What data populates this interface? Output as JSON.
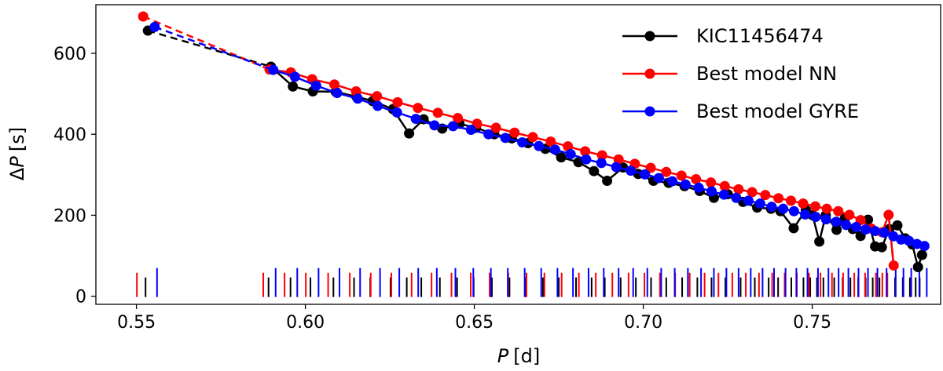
{
  "chart_data": {
    "type": "scatter",
    "xlabel_var": "P",
    "xlabel_unit": "[d]",
    "ylabel_prefix": "Δ",
    "ylabel_var": "P",
    "ylabel_unit": "[s]",
    "xlim": [
      0.538,
      0.788
    ],
    "ylim": [
      -20,
      720
    ],
    "xticks": [
      0.55,
      0.6,
      0.65,
      0.7,
      0.75
    ],
    "xtick_labels": [
      "0.55",
      "0.60",
      "0.65",
      "0.70",
      "0.75"
    ],
    "yticks": [
      0,
      200,
      400,
      600
    ],
    "ytick_labels": [
      "0",
      "200",
      "400",
      "600"
    ],
    "legend_position": "top-right",
    "series": [
      {
        "name": "KIC11456474",
        "color": "#000000",
        "x": [
          0.5534,
          0.5898,
          0.5963,
          0.6022,
          0.609,
          0.6151,
          0.6199,
          0.6259,
          0.6307,
          0.635,
          0.6405,
          0.6456,
          0.6505,
          0.6559,
          0.6611,
          0.6659,
          0.671,
          0.6757,
          0.6808,
          0.6854,
          0.6893,
          0.694,
          0.6985,
          0.703,
          0.7075,
          0.7122,
          0.7167,
          0.7209,
          0.725,
          0.7295,
          0.7337,
          0.7378,
          0.7406,
          0.7445,
          0.7481,
          0.7501,
          0.7521,
          0.754,
          0.7572,
          0.7597,
          0.762,
          0.7643,
          0.7665,
          0.7686,
          0.7706,
          0.7728,
          0.7752,
          0.7775,
          0.7796,
          0.7813,
          0.7825
        ],
        "y": [
          656,
          567,
          518,
          506,
          505,
          493,
          482,
          462,
          402,
          437,
          414,
          426,
          416,
          400,
          390,
          378,
          364,
          343,
          331,
          309,
          285,
          318,
          302,
          285,
          280,
          272,
          260,
          243,
          252,
          233,
          219,
          216,
          210,
          168,
          213,
          200,
          135,
          200,
          164,
          193,
          166,
          149,
          189,
          123,
          121,
          166,
          175,
          143,
          128,
          72,
          102
        ]
      },
      {
        "name": "Best model NN",
        "color": "#ff0000",
        "x": [
          0.552,
          0.5894,
          0.5957,
          0.602,
          0.6086,
          0.615,
          0.6212,
          0.6273,
          0.6333,
          0.6392,
          0.6451,
          0.6508,
          0.6564,
          0.6619,
          0.6673,
          0.6726,
          0.6777,
          0.6828,
          0.6878,
          0.6927,
          0.6975,
          0.7022,
          0.7068,
          0.7113,
          0.7156,
          0.72,
          0.7241,
          0.7282,
          0.7322,
          0.7361,
          0.74,
          0.7437,
          0.7473,
          0.7509,
          0.7543,
          0.7577,
          0.761,
          0.7643,
          0.7675,
          0.7707,
          0.7726,
          0.7741
        ],
        "y": [
          691,
          560,
          553,
          536,
          523,
          506,
          494,
          479,
          465,
          453,
          440,
          426,
          416,
          404,
          393,
          382,
          370,
          358,
          348,
          338,
          327,
          317,
          307,
          298,
          289,
          281,
          272,
          264,
          257,
          250,
          242,
          236,
          229,
          222,
          216,
          210,
          201,
          188,
          167,
          158,
          201,
          76
        ]
      },
      {
        "name": "Best model GYRE",
        "color": "#0000ff",
        "x": [
          0.5554,
          0.5905,
          0.5969,
          0.6032,
          0.6094,
          0.6155,
          0.6214,
          0.6271,
          0.6327,
          0.6382,
          0.6437,
          0.649,
          0.6542,
          0.6592,
          0.6642,
          0.6691,
          0.6739,
          0.6785,
          0.6831,
          0.6876,
          0.692,
          0.6963,
          0.7005,
          0.7046,
          0.7086,
          0.7125,
          0.7164,
          0.7202,
          0.7239,
          0.7275,
          0.7311,
          0.7346,
          0.738,
          0.7414,
          0.7446,
          0.7479,
          0.751,
          0.7541,
          0.7571,
          0.76,
          0.763,
          0.7658,
          0.7686,
          0.7713,
          0.774,
          0.7763,
          0.7786,
          0.781,
          0.7832
        ],
        "y": [
          665,
          559,
          542,
          520,
          502,
          488,
          470,
          454,
          438,
          422,
          420,
          411,
          400,
          391,
          380,
          371,
          362,
          351,
          338,
          329,
          319,
          310,
          301,
          292,
          284,
          276,
          268,
          259,
          251,
          243,
          236,
          229,
          221,
          216,
          210,
          202,
          196,
          190,
          184,
          176,
          171,
          165,
          161,
          157,
          148,
          140,
          137,
          129,
          124
        ]
      }
    ]
  }
}
